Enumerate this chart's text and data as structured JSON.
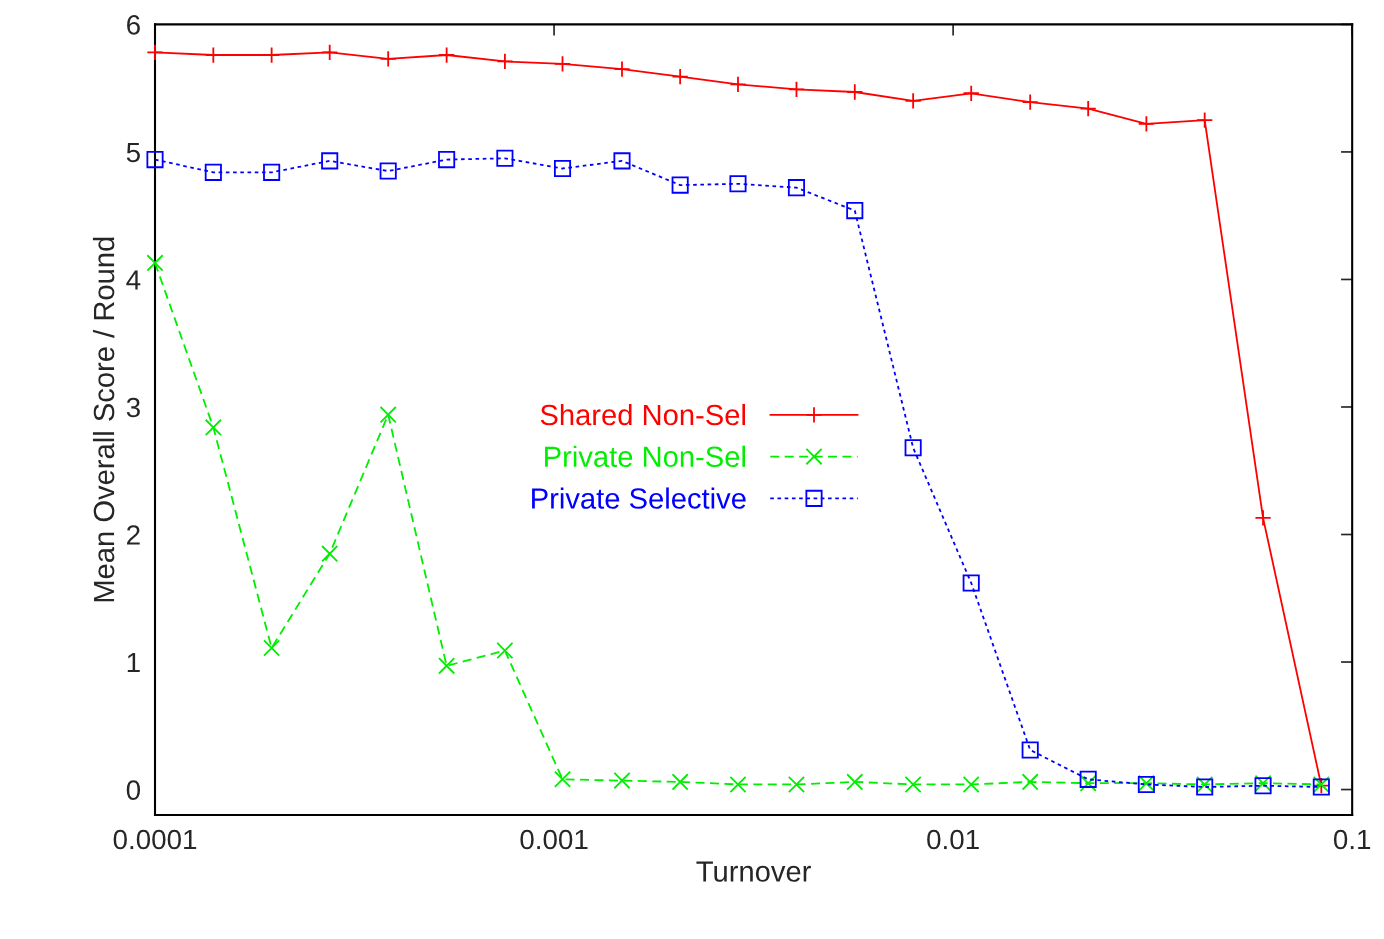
{
  "chart_data": {
    "type": "line",
    "xlabel": "Turnover",
    "ylabel": "Mean Overall Score / Round",
    "x": [
      0.0001,
      0.00014,
      0.000196,
      0.000274,
      0.000384,
      0.000538,
      0.000753,
      0.00105,
      0.00148,
      0.00207,
      0.00289,
      0.00405,
      0.00567,
      0.00794,
      0.0111,
      0.0156,
      0.0218,
      0.0305,
      0.0427,
      0.0598,
      0.0837
    ],
    "series": [
      {
        "name": "Shared Non-Sel",
        "color": "#ff0000",
        "marker": "plus",
        "line_style": "solid",
        "values": [
          5.78,
          5.76,
          5.76,
          5.78,
          5.73,
          5.76,
          5.71,
          5.69,
          5.65,
          5.59,
          5.53,
          5.49,
          5.47,
          5.4,
          5.46,
          5.39,
          5.34,
          5.22,
          5.25,
          2.13,
          0.03
        ]
      },
      {
        "name": "Private Non-Sel",
        "color": "#00ee00",
        "marker": "cross",
        "line_style": "dashed",
        "values": [
          4.13,
          2.84,
          1.11,
          1.85,
          2.94,
          0.97,
          1.09,
          0.08,
          0.07,
          0.06,
          0.04,
          0.04,
          0.06,
          0.04,
          0.04,
          0.06,
          0.05,
          0.05,
          0.04,
          0.05,
          0.04
        ]
      },
      {
        "name": "Private Selective",
        "color": "#0000ff",
        "marker": "square",
        "line_style": "dotted",
        "values": [
          4.94,
          4.84,
          4.84,
          4.93,
          4.85,
          4.94,
          4.95,
          4.87,
          4.93,
          4.74,
          4.75,
          4.72,
          4.54,
          2.68,
          1.62,
          0.31,
          0.08,
          0.04,
          0.02,
          0.03,
          0.02
        ]
      }
    ],
    "log": "x",
    "xlim": [
      0.0001,
      0.1
    ],
    "xticks": [
      0.0001,
      0.001,
      0.01,
      0.1
    ],
    "ylim": [
      -0.2,
      6
    ],
    "yticks": [
      0,
      1,
      2,
      3,
      4,
      5,
      6
    ],
    "legend": "center"
  }
}
